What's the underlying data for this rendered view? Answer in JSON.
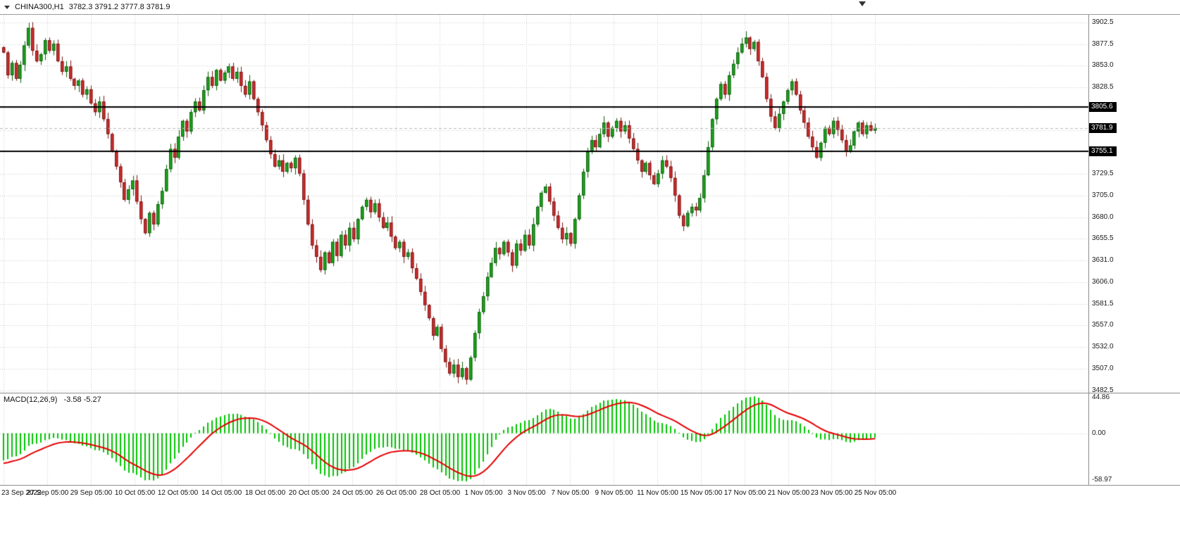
{
  "header": {
    "symbol": "CHINA300,H1",
    "ohlc": "3782.3 3791.2 3777.8 3781.9"
  },
  "colors": {
    "up": "#1fa51f",
    "up_border": "#0b5e0b",
    "down": "#cc2f2f",
    "down_border": "#7c1414",
    "grid": "#c9c9c9",
    "hline": "#000000",
    "badge_bg": "#000000",
    "badge_text": "#ffffff",
    "macd_hist": "#00c400",
    "macd_signal": "#e40000",
    "current_line": "#b8b8b8",
    "separator": "#8c8c8c"
  },
  "chart_data": {
    "type": "candlestick",
    "title": "CHINA300,H1",
    "ohlc_display": {
      "open": "3782.3",
      "high": "3791.2",
      "low": "3777.8",
      "close": "3781.9"
    },
    "price_axis": {
      "view_max": 3911,
      "view_min": 3480,
      "grid_prices": [
        3902.5,
        3877.5,
        3853.0,
        3828.5,
        3804.0,
        3779.5,
        3755.0,
        3729.5,
        3705.0,
        3680.0,
        3655.5,
        3631.0,
        3606.0,
        3581.5,
        3557.0,
        3532.0,
        3507.0,
        3482.5
      ],
      "labels": [
        {
          "text": "3902.5",
          "price": 3902.5
        },
        {
          "text": "3877.5",
          "price": 3877.5
        },
        {
          "text": "3853.0",
          "price": 3853.0
        },
        {
          "text": "3828.5",
          "price": 3828.5
        },
        {
          "text": "3729.5",
          "price": 3729.5
        },
        {
          "text": "3705.0",
          "price": 3705.0
        },
        {
          "text": "3680.0",
          "price": 3680.0
        },
        {
          "text": "3655.5",
          "price": 3655.5
        },
        {
          "text": "3631.0",
          "price": 3631.0
        },
        {
          "text": "3606.0",
          "price": 3606.0
        },
        {
          "text": "3581.5",
          "price": 3581.5
        },
        {
          "text": "3557.0",
          "price": 3557.0
        },
        {
          "text": "3532.0",
          "price": 3532.0
        },
        {
          "text": "3507.0",
          "price": 3507.0
        },
        {
          "text": "3482.5",
          "price": 3482.5
        }
      ]
    },
    "hlines": [
      {
        "price": 3805.6,
        "label": "3805.6"
      },
      {
        "price": 3755.1,
        "label": "3755.1"
      }
    ],
    "current_price": {
      "price": 3781.9,
      "label": "3781.9"
    },
    "time_labels": [
      "23 Sep 2022",
      "27 Sep 05:00",
      "29 Sep 05:00",
      "10 Oct 05:00",
      "12 Oct 05:00",
      "14 Oct 05:00",
      "18 Oct 05:00",
      "20 Oct 05:00",
      "24 Oct 05:00",
      "26 Oct 05:00",
      "28 Oct 05:00",
      "1 Nov 05:00",
      "3 Nov 05:00",
      "7 Nov 05:00",
      "9 Nov 05:00",
      "11 Nov 05:00",
      "15 Nov 05:00",
      "17 Nov 05:00",
      "21 Nov 05:00",
      "23 Nov 05:00",
      "25 Nov 05:00"
    ],
    "closes": [
      3868,
      3842,
      3856,
      3838,
      3854,
      3876,
      3896,
      3870,
      3858,
      3866,
      3882,
      3870,
      3878,
      3858,
      3846,
      3852,
      3838,
      3830,
      3836,
      3820,
      3826,
      3810,
      3800,
      3812,
      3792,
      3775,
      3755,
      3738,
      3720,
      3700,
      3712,
      3722,
      3698,
      3678,
      3662,
      3685,
      3672,
      3695,
      3710,
      3735,
      3758,
      3748,
      3772,
      3790,
      3778,
      3800,
      3812,
      3802,
      3825,
      3840,
      3830,
      3848,
      3836,
      3845,
      3852,
      3838,
      3846,
      3830,
      3820,
      3835,
      3815,
      3800,
      3785,
      3768,
      3752,
      3738,
      3745,
      3732,
      3742,
      3736,
      3748,
      3730,
      3700,
      3672,
      3648,
      3635,
      3620,
      3640,
      3628,
      3652,
      3636,
      3660,
      3648,
      3668,
      3655,
      3678,
      3692,
      3700,
      3686,
      3696,
      3680,
      3668,
      3674,
      3658,
      3645,
      3652,
      3635,
      3640,
      3622,
      3610,
      3595,
      3580,
      3565,
      3545,
      3555,
      3530,
      3515,
      3502,
      3512,
      3498,
      3508,
      3495,
      3520,
      3548,
      3572,
      3590,
      3612,
      3628,
      3645,
      3638,
      3652,
      3640,
      3625,
      3650,
      3642,
      3660,
      3648,
      3672,
      3692,
      3708,
      3715,
      3698,
      3682,
      3668,
      3655,
      3662,
      3650,
      3678,
      3705,
      3732,
      3755,
      3768,
      3760,
      3775,
      3788,
      3772,
      3782,
      3790,
      3778,
      3785,
      3770,
      3758,
      3745,
      3732,
      3742,
      3728,
      3718,
      3730,
      3745,
      3738,
      3725,
      3705,
      3682,
      3670,
      3685,
      3692,
      3688,
      3702,
      3728,
      3760,
      3792,
      3815,
      3832,
      3820,
      3842,
      3855,
      3868,
      3878,
      3885,
      3872,
      3880,
      3858,
      3840,
      3815,
      3795,
      3782,
      3798,
      3812,
      3825,
      3835,
      3820,
      3802,
      3788,
      3772,
      3760,
      3748,
      3765,
      3782,
      3775,
      3790,
      3780,
      3768,
      3755,
      3762,
      3778,
      3788,
      3775,
      3785,
      3779,
      3781.9
    ],
    "macd": {
      "label": "MACD(12,26,9)",
      "values": "-3.58 -5.27",
      "fast": 12,
      "slow": 26,
      "signal": 9,
      "axis_max": 44.86,
      "axis_min": -58.97,
      "axis": [
        {
          "text": "44.86",
          "value": 44.86
        },
        {
          "text": "0.00",
          "value": 0
        },
        {
          "text": "-58.97",
          "value": -58.97
        }
      ]
    }
  }
}
